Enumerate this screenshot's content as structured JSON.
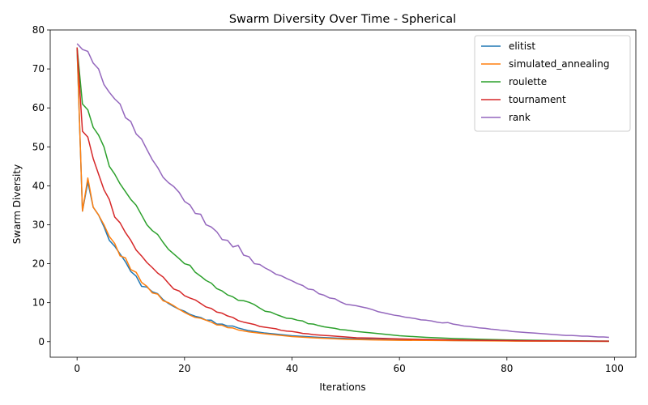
{
  "chart_data": {
    "type": "line",
    "title": "Swarm Diversity Over Time - Spherical",
    "xlabel": "Iterations",
    "ylabel": "Swarm Diversity",
    "xlim": [
      -5,
      104
    ],
    "ylim": [
      -4,
      80
    ],
    "xticks": [
      0,
      20,
      40,
      60,
      80,
      100
    ],
    "yticks": [
      0,
      10,
      20,
      30,
      40,
      50,
      60,
      70,
      80
    ],
    "grid": false,
    "legend_position": "top-right",
    "series": [
      {
        "name": "elitist",
        "color": "#1f77b4",
        "points": [
          [
            0,
            75
          ],
          [
            1,
            33.5
          ],
          [
            2,
            41
          ],
          [
            3,
            34.5
          ],
          [
            4,
            32.5
          ],
          [
            5,
            29.5
          ],
          [
            6,
            26
          ],
          [
            7,
            24.5
          ],
          [
            8,
            22.5
          ],
          [
            9,
            20.5
          ],
          [
            10,
            18
          ],
          [
            11,
            16.8
          ],
          [
            12,
            14.2
          ],
          [
            13,
            14
          ],
          [
            14,
            12.8
          ],
          [
            15,
            12.3
          ],
          [
            16,
            10.8
          ],
          [
            17,
            9.8
          ],
          [
            18,
            9.0
          ],
          [
            19,
            8.3
          ],
          [
            20,
            7.8
          ],
          [
            21,
            7.0
          ],
          [
            22,
            6.5
          ],
          [
            23,
            6.2
          ],
          [
            24,
            5.5
          ],
          [
            25,
            5.5
          ],
          [
            26,
            4.5
          ],
          [
            27,
            4.5
          ],
          [
            28,
            4.0
          ],
          [
            29,
            4.0
          ],
          [
            30,
            3.5
          ],
          [
            32,
            2.8
          ],
          [
            35,
            2.2
          ],
          [
            38,
            1.8
          ],
          [
            40,
            1.5
          ],
          [
            45,
            1.1
          ],
          [
            50,
            0.8
          ],
          [
            55,
            0.6
          ],
          [
            60,
            0.45
          ],
          [
            70,
            0.3
          ],
          [
            80,
            0.2
          ],
          [
            90,
            0.12
          ],
          [
            99,
            0.08
          ]
        ]
      },
      {
        "name": "simulated_annealing",
        "color": "#ff7f0e",
        "points": [
          [
            0,
            75.5
          ],
          [
            1,
            33.5
          ],
          [
            2,
            42
          ],
          [
            3,
            34.5
          ],
          [
            4,
            32.5
          ],
          [
            5,
            30
          ],
          [
            6,
            27
          ],
          [
            7,
            25.2
          ],
          [
            8,
            22
          ],
          [
            9,
            21.5
          ],
          [
            10,
            18.5
          ],
          [
            11,
            17.8
          ],
          [
            12,
            15.2
          ],
          [
            13,
            14.2
          ],
          [
            14,
            12.5
          ],
          [
            15,
            12.2
          ],
          [
            16,
            10.5
          ],
          [
            17,
            10
          ],
          [
            18,
            9.2
          ],
          [
            19,
            8.3
          ],
          [
            20,
            7.5
          ],
          [
            21,
            6.8
          ],
          [
            22,
            6.2
          ],
          [
            23,
            6.0
          ],
          [
            24,
            5.5
          ],
          [
            25,
            5.0
          ],
          [
            26,
            4.3
          ],
          [
            27,
            4.2
          ],
          [
            28,
            3.6
          ],
          [
            29,
            3.5
          ],
          [
            30,
            3.0
          ],
          [
            32,
            2.5
          ],
          [
            35,
            2.0
          ],
          [
            38,
            1.6
          ],
          [
            40,
            1.3
          ],
          [
            45,
            0.9
          ],
          [
            50,
            0.6
          ],
          [
            55,
            0.45
          ],
          [
            60,
            0.35
          ],
          [
            70,
            0.25
          ],
          [
            80,
            0.15
          ],
          [
            90,
            0.1
          ],
          [
            99,
            0.05
          ]
        ]
      },
      {
        "name": "roulette",
        "color": "#2ca02c",
        "points": [
          [
            0,
            75.5
          ],
          [
            1,
            61
          ],
          [
            2,
            59.5
          ],
          [
            3,
            55
          ],
          [
            4,
            53
          ],
          [
            5,
            50
          ],
          [
            6,
            45
          ],
          [
            7,
            43
          ],
          [
            8,
            40.5
          ],
          [
            9,
            38.5
          ],
          [
            10,
            36.5
          ],
          [
            11,
            35
          ],
          [
            12,
            32.5
          ],
          [
            13,
            30
          ],
          [
            14,
            28.5
          ],
          [
            15,
            27.5
          ],
          [
            16,
            25.5
          ],
          [
            17,
            23.7
          ],
          [
            18,
            22.5
          ],
          [
            19,
            21.3
          ],
          [
            20,
            20
          ],
          [
            21,
            19.6
          ],
          [
            22,
            17.8
          ],
          [
            23,
            16.8
          ],
          [
            24,
            15.7
          ],
          [
            25,
            15
          ],
          [
            26,
            13.6
          ],
          [
            27,
            13
          ],
          [
            28,
            12
          ],
          [
            29,
            11.5
          ],
          [
            30,
            10.6
          ],
          [
            31,
            10.5
          ],
          [
            32,
            10.1
          ],
          [
            33,
            9.5
          ],
          [
            34,
            8.6
          ],
          [
            35,
            7.8
          ],
          [
            36,
            7.6
          ],
          [
            37,
            7.0
          ],
          [
            38,
            6.5
          ],
          [
            39,
            6.0
          ],
          [
            40,
            5.9
          ],
          [
            41,
            5.5
          ],
          [
            42,
            5.3
          ],
          [
            43,
            4.6
          ],
          [
            44,
            4.5
          ],
          [
            45,
            4.1
          ],
          [
            46,
            3.8
          ],
          [
            47,
            3.6
          ],
          [
            48,
            3.4
          ],
          [
            49,
            3.1
          ],
          [
            50,
            3.0
          ],
          [
            52,
            2.6
          ],
          [
            55,
            2.2
          ],
          [
            58,
            1.8
          ],
          [
            60,
            1.5
          ],
          [
            65,
            1.1
          ],
          [
            70,
            0.8
          ],
          [
            75,
            0.6
          ],
          [
            80,
            0.45
          ],
          [
            85,
            0.35
          ],
          [
            90,
            0.25
          ],
          [
            95,
            0.18
          ],
          [
            99,
            0.12
          ]
        ]
      },
      {
        "name": "tournament",
        "color": "#d62728",
        "points": [
          [
            0,
            75.5
          ],
          [
            1,
            54
          ],
          [
            2,
            52.5
          ],
          [
            3,
            47
          ],
          [
            4,
            43
          ],
          [
            5,
            39
          ],
          [
            6,
            36.5
          ],
          [
            7,
            32
          ],
          [
            8,
            30.5
          ],
          [
            9,
            28
          ],
          [
            10,
            26
          ],
          [
            11,
            23.5
          ],
          [
            12,
            22
          ],
          [
            13,
            20.3
          ],
          [
            14,
            19
          ],
          [
            15,
            17.6
          ],
          [
            16,
            16.6
          ],
          [
            17,
            15
          ],
          [
            18,
            13.5
          ],
          [
            19,
            13
          ],
          [
            20,
            11.8
          ],
          [
            21,
            11.2
          ],
          [
            22,
            10.7
          ],
          [
            23,
            9.8
          ],
          [
            24,
            8.9
          ],
          [
            25,
            8.5
          ],
          [
            26,
            7.6
          ],
          [
            27,
            7.3
          ],
          [
            28,
            6.6
          ],
          [
            29,
            6.2
          ],
          [
            30,
            5.4
          ],
          [
            31,
            5.0
          ],
          [
            32,
            4.7
          ],
          [
            33,
            4.4
          ],
          [
            34,
            3.9
          ],
          [
            35,
            3.7
          ],
          [
            36,
            3.5
          ],
          [
            37,
            3.3
          ],
          [
            38,
            2.9
          ],
          [
            39,
            2.7
          ],
          [
            40,
            2.6
          ],
          [
            41,
            2.4
          ],
          [
            42,
            2.1
          ],
          [
            43,
            2.0
          ],
          [
            44,
            1.8
          ],
          [
            45,
            1.7
          ],
          [
            46,
            1.6
          ],
          [
            47,
            1.5
          ],
          [
            48,
            1.4
          ],
          [
            49,
            1.3
          ],
          [
            50,
            1.2
          ],
          [
            52,
            1.0
          ],
          [
            55,
            0.9
          ],
          [
            60,
            0.7
          ],
          [
            65,
            0.55
          ],
          [
            70,
            0.45
          ],
          [
            75,
            0.35
          ],
          [
            80,
            0.28
          ],
          [
            85,
            0.22
          ],
          [
            90,
            0.18
          ],
          [
            95,
            0.14
          ],
          [
            99,
            0.12
          ]
        ]
      },
      {
        "name": "rank",
        "color": "#9467bd",
        "points": [
          [
            0,
            76.5
          ],
          [
            1,
            75
          ],
          [
            2,
            74.5
          ],
          [
            3,
            71.5
          ],
          [
            4,
            70
          ],
          [
            5,
            66
          ],
          [
            6,
            64
          ],
          [
            7,
            62.3
          ],
          [
            8,
            61
          ],
          [
            9,
            57.5
          ],
          [
            10,
            56.5
          ],
          [
            11,
            53.3
          ],
          [
            12,
            52
          ],
          [
            13,
            49.3
          ],
          [
            14,
            46.7
          ],
          [
            15,
            44.7
          ],
          [
            16,
            42.2
          ],
          [
            17,
            40.8
          ],
          [
            18,
            39.8
          ],
          [
            19,
            38.3
          ],
          [
            20,
            36
          ],
          [
            21,
            35.1
          ],
          [
            22,
            32.9
          ],
          [
            23,
            32.7
          ],
          [
            24,
            30
          ],
          [
            25,
            29.4
          ],
          [
            26,
            28.2
          ],
          [
            27,
            26.2
          ],
          [
            28,
            26
          ],
          [
            29,
            24.3
          ],
          [
            30,
            24.7
          ],
          [
            31,
            22.2
          ],
          [
            32,
            21.8
          ],
          [
            33,
            20
          ],
          [
            34,
            19.8
          ],
          [
            35,
            18.9
          ],
          [
            36,
            18.2
          ],
          [
            37,
            17.3
          ],
          [
            38,
            16.9
          ],
          [
            39,
            16.2
          ],
          [
            40,
            15.6
          ],
          [
            41,
            14.9
          ],
          [
            42,
            14.4
          ],
          [
            43,
            13.5
          ],
          [
            44,
            13.3
          ],
          [
            45,
            12.3
          ],
          [
            46,
            11.9
          ],
          [
            47,
            11.2
          ],
          [
            48,
            11
          ],
          [
            49,
            10.2
          ],
          [
            50,
            9.6
          ],
          [
            51,
            9.4
          ],
          [
            52,
            9.2
          ],
          [
            53,
            8.9
          ],
          [
            54,
            8.6
          ],
          [
            55,
            8.2
          ],
          [
            56,
            7.7
          ],
          [
            57,
            7.4
          ],
          [
            58,
            7.1
          ],
          [
            59,
            6.8
          ],
          [
            60,
            6.6
          ],
          [
            61,
            6.3
          ],
          [
            62,
            6.1
          ],
          [
            63,
            5.9
          ],
          [
            64,
            5.6
          ],
          [
            65,
            5.5
          ],
          [
            66,
            5.3
          ],
          [
            67,
            5.0
          ],
          [
            68,
            4.8
          ],
          [
            69,
            4.9
          ],
          [
            70,
            4.5
          ],
          [
            71,
            4.3
          ],
          [
            72,
            4.0
          ],
          [
            73,
            3.9
          ],
          [
            74,
            3.7
          ],
          [
            75,
            3.5
          ],
          [
            76,
            3.4
          ],
          [
            77,
            3.2
          ],
          [
            78,
            3.1
          ],
          [
            79,
            2.9
          ],
          [
            80,
            2.8
          ],
          [
            81,
            2.6
          ],
          [
            82,
            2.5
          ],
          [
            83,
            2.4
          ],
          [
            84,
            2.3
          ],
          [
            85,
            2.2
          ],
          [
            86,
            2.1
          ],
          [
            87,
            2.0
          ],
          [
            88,
            1.9
          ],
          [
            89,
            1.8
          ],
          [
            90,
            1.7
          ],
          [
            91,
            1.6
          ],
          [
            92,
            1.6
          ],
          [
            93,
            1.5
          ],
          [
            94,
            1.4
          ],
          [
            95,
            1.4
          ],
          [
            96,
            1.3
          ],
          [
            97,
            1.2
          ],
          [
            98,
            1.2
          ],
          [
            99,
            1.1
          ]
        ]
      }
    ]
  }
}
